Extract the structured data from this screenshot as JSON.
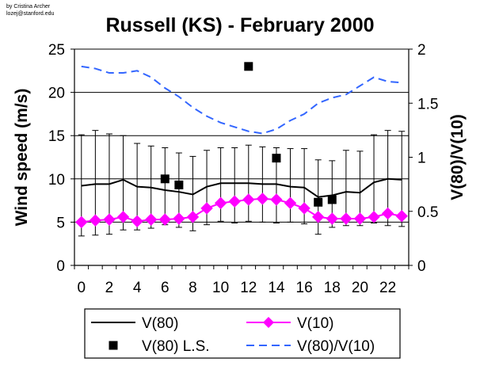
{
  "credit": [
    "by Cristina Archer",
    "lozej@stanford.edu"
  ],
  "chart_data": {
    "type": "line",
    "title": "Russell (KS) - February 2000",
    "xlabel": "",
    "ylabel": "Wind speed (m/s)",
    "y2label": "V(80)/V(10)",
    "x": [
      0,
      1,
      2,
      3,
      4,
      5,
      6,
      7,
      8,
      9,
      10,
      11,
      12,
      13,
      14,
      15,
      16,
      17,
      18,
      19,
      20,
      21,
      22,
      23
    ],
    "xticks": [
      0,
      2,
      4,
      6,
      8,
      10,
      12,
      14,
      16,
      18,
      20,
      22
    ],
    "ylim": [
      0,
      25
    ],
    "yticks": [
      0,
      5,
      10,
      15,
      20,
      25
    ],
    "y2lim": [
      0,
      2
    ],
    "y2ticks": [
      "0",
      "0.5",
      "1",
      "1.5",
      "2"
    ],
    "grid": "horizontal",
    "legend_position": "bottom",
    "series": [
      {
        "name": "V(80)",
        "axis": "left",
        "style": "solid",
        "color": "#000000",
        "values": [
          9.2,
          9.4,
          9.4,
          9.9,
          9.1,
          9.0,
          8.7,
          8.5,
          8.2,
          9.1,
          9.5,
          9.5,
          9.5,
          9.4,
          9.4,
          9.1,
          9.0,
          7.9,
          8.1,
          8.5,
          8.4,
          9.6,
          10.0,
          9.9
        ],
        "error_low": [
          3.4,
          3.5,
          3.6,
          4.1,
          4.1,
          4.3,
          4.7,
          4.4,
          4.0,
          4.7,
          5.1,
          4.9,
          5.1,
          5.0,
          4.9,
          5.0,
          4.8,
          3.6,
          4.4,
          4.6,
          4.6,
          4.9,
          4.6,
          4.5
        ],
        "error_high": [
          15.1,
          15.6,
          15.2,
          15.0,
          14.1,
          13.8,
          13.6,
          13.0,
          12.6,
          13.3,
          13.6,
          13.6,
          13.9,
          13.7,
          13.6,
          13.5,
          13.5,
          12.2,
          12.1,
          13.3,
          13.2,
          15.1,
          15.6,
          15.5
        ]
      },
      {
        "name": "V(10)",
        "axis": "left",
        "style": "solid-diamond",
        "color": "#ff00ff",
        "values": [
          5.0,
          5.2,
          5.3,
          5.6,
          5.1,
          5.3,
          5.3,
          5.4,
          5.6,
          6.6,
          7.2,
          7.4,
          7.6,
          7.7,
          7.6,
          7.2,
          6.6,
          5.6,
          5.4,
          5.4,
          5.4,
          5.6,
          6.0,
          5.7
        ]
      },
      {
        "name": "V(80) L.S.",
        "axis": "left",
        "style": "square-marker",
        "color": "#000000",
        "x": [
          6,
          7,
          12,
          14,
          17,
          18
        ],
        "values": [
          10.0,
          9.3,
          23.0,
          12.4,
          7.3,
          7.6
        ]
      },
      {
        "name": "V(80)/V(10)",
        "axis": "right",
        "style": "dashed",
        "color": "#3366ff",
        "values": [
          1.84,
          1.82,
          1.78,
          1.78,
          1.8,
          1.74,
          1.64,
          1.56,
          1.46,
          1.38,
          1.32,
          1.28,
          1.24,
          1.22,
          1.26,
          1.34,
          1.4,
          1.5,
          1.55,
          1.58,
          1.66,
          1.74,
          1.7,
          1.69
        ]
      }
    ]
  }
}
